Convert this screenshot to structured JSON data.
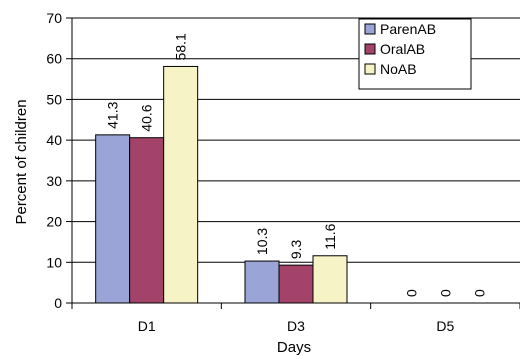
{
  "chart_data": {
    "type": "bar",
    "title": "",
    "xlabel": "Days",
    "ylabel": "Percent of children",
    "categories": [
      "D1",
      "D3",
      "D5"
    ],
    "ylim": [
      0,
      70
    ],
    "yticks": [
      0,
      10,
      20,
      30,
      40,
      50,
      60,
      70
    ],
    "grid": "horizontal",
    "legend_position": "top-right",
    "series": [
      {
        "name": "ParenAB",
        "values": [
          41.3,
          10.3,
          0
        ],
        "labels": [
          "41.3",
          "10.3",
          "0"
        ],
        "color": "#9aa4d6"
      },
      {
        "name": "OralAB",
        "values": [
          40.6,
          9.3,
          0
        ],
        "labels": [
          "40.6",
          "9.3",
          "0"
        ],
        "color": "#a3436a"
      },
      {
        "name": "NoAB",
        "values": [
          58.1,
          11.6,
          0
        ],
        "labels": [
          "58.1",
          "11.6",
          "0"
        ],
        "color": "#f6f3c6"
      }
    ]
  }
}
